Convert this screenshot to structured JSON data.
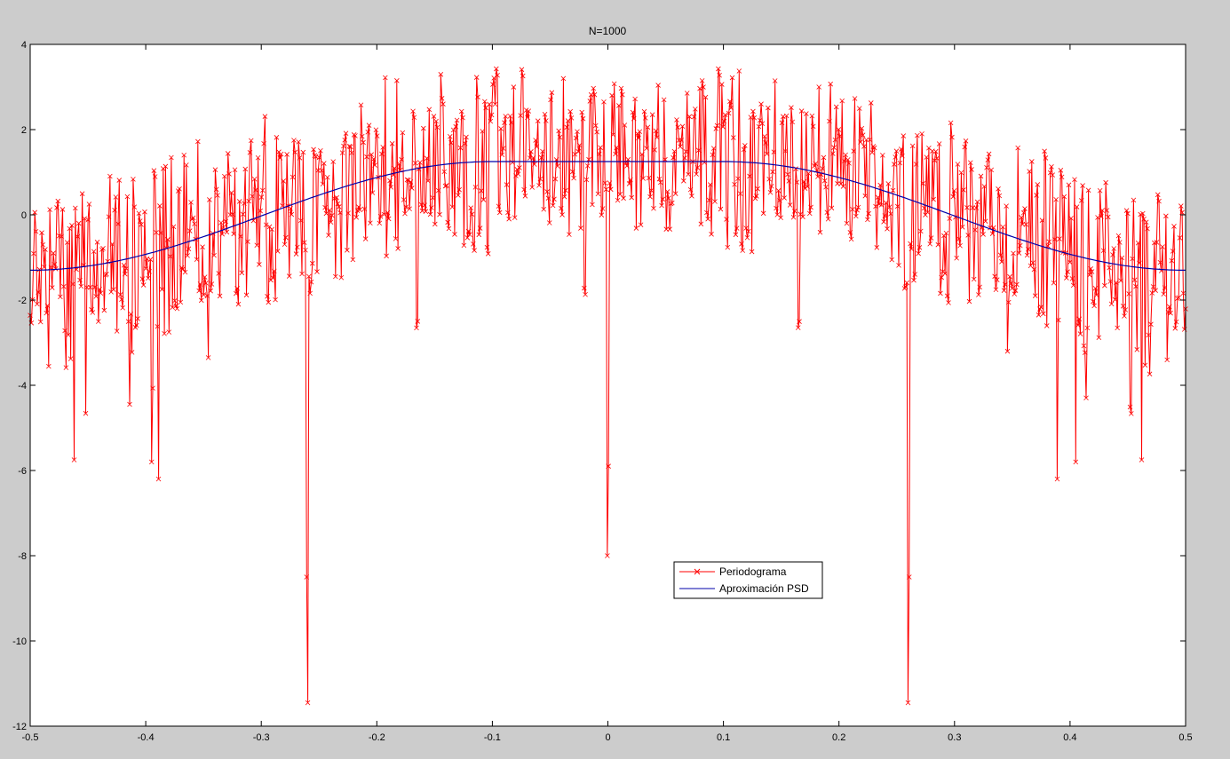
{
  "chart_data": {
    "type": "line",
    "title": "N=1000",
    "xlabel": "",
    "ylabel": "",
    "xlim": [
      -0.5,
      0.5
    ],
    "ylim": [
      -12,
      4
    ],
    "xticks": [
      -0.5,
      -0.4,
      -0.3,
      -0.2,
      -0.1,
      0,
      0.1,
      0.2,
      0.3,
      0.4,
      0.5
    ],
    "xtick_labels": [
      "-0.5",
      "-0.4",
      "-0.3",
      "-0.2",
      "-0.1",
      "0",
      "0.1",
      "0.2",
      "0.3",
      "0.4",
      "0.5"
    ],
    "yticks": [
      -12,
      -10,
      -8,
      -6,
      -4,
      -2,
      0,
      2,
      4
    ],
    "ytick_labels": [
      "-12",
      "-10",
      "-8",
      "-6",
      "-4",
      "-2",
      "0",
      "2",
      "4"
    ],
    "grid": false,
    "legend_position": "lower-center",
    "colors": {
      "figure_bg": "#cccccc",
      "axes_bg": "#ffffff",
      "periodogram": "#ff0000",
      "psd": "#0000aa"
    },
    "series": [
      {
        "name": "Periodograma",
        "marker": "x",
        "n_points": 1000,
        "shape": "noisy periodogram in dB around a raised-cosine envelope (-1.3 at edges, 1.25 plateau for |f|<0.1), amplitude ~±2, symmetric about f=0",
        "notable_points": [
          {
            "x": -0.26,
            "y": -11.45
          },
          {
            "x": -0.26,
            "y": -8.5
          },
          {
            "x": 0.26,
            "y": -11.45
          },
          {
            "x": 0.26,
            "y": -8.5
          },
          {
            "x": 0.0,
            "y": -8.0
          },
          {
            "x": 0.0,
            "y": -5.9
          },
          {
            "x": -0.389,
            "y": -6.2
          },
          {
            "x": 0.389,
            "y": -6.2
          },
          {
            "x": -0.395,
            "y": -5.8
          },
          {
            "x": 0.405,
            "y": -5.8
          },
          {
            "x": -0.462,
            "y": -5.75
          },
          {
            "x": 0.462,
            "y": -5.75
          },
          {
            "x": -0.05,
            "y": 2.7
          },
          {
            "x": 0.05,
            "y": 2.7
          },
          {
            "x": -0.138,
            "y": 2.6
          },
          {
            "x": 0.138,
            "y": 2.6
          }
        ]
      },
      {
        "name": "Aproximación PSD",
        "x": [
          -0.5,
          -0.45,
          -0.4,
          -0.35,
          -0.3,
          -0.25,
          -0.2,
          -0.15,
          -0.1,
          -0.05,
          0,
          0.05,
          0.1,
          0.15,
          0.2,
          0.25,
          0.3,
          0.35,
          0.4,
          0.45,
          0.5
        ],
        "values": [
          -1.3,
          -1.27,
          -1.1,
          -0.85,
          -0.45,
          0.0,
          0.5,
          1.0,
          1.25,
          1.25,
          1.25,
          1.25,
          1.25,
          1.0,
          0.5,
          0.0,
          -0.45,
          -0.85,
          -1.1,
          -1.27,
          -1.3
        ]
      }
    ]
  }
}
